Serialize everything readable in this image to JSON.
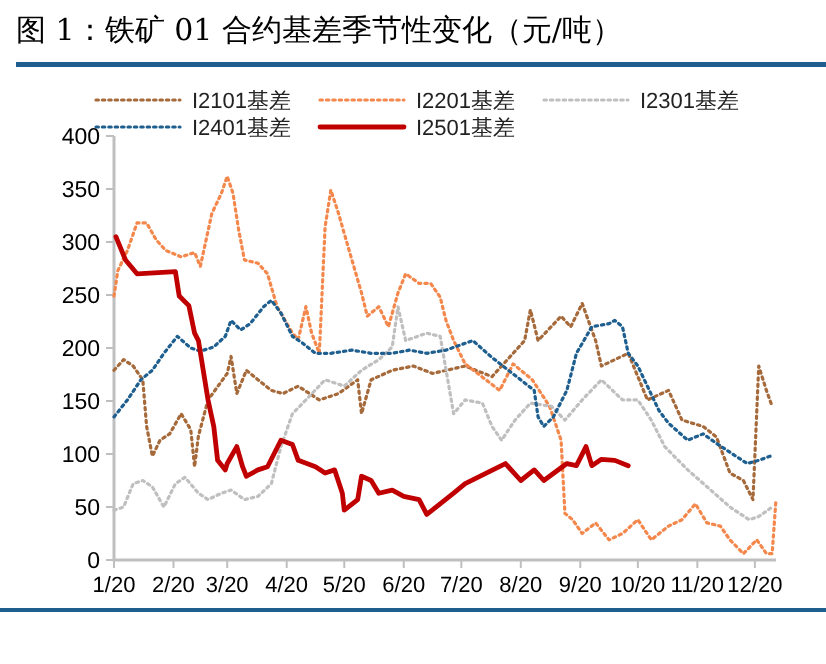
{
  "chart_data": {
    "type": "line",
    "title": "图 1：铁矿 01 合约基差季节性变化（元/吨）",
    "xlim": [
      "--01-20",
      "--12-31"
    ],
    "xticks": [
      {
        "value": "--01-20",
        "label": "1/20"
      },
      {
        "value": "--02-20",
        "label": "2/20"
      },
      {
        "value": "--03-20",
        "label": "3/20"
      },
      {
        "value": "--04-20",
        "label": "4/20"
      },
      {
        "value": "--05-20",
        "label": "5/20"
      },
      {
        "value": "--06-20",
        "label": "6/20"
      },
      {
        "value": "--07-20",
        "label": "7/20"
      },
      {
        "value": "--08-20",
        "label": "8/20"
      },
      {
        "value": "--09-20",
        "label": "9/20"
      },
      {
        "value": "--10-20",
        "label": "10/20"
      },
      {
        "value": "--11-20",
        "label": "11/20"
      },
      {
        "value": "--12-20",
        "label": "12/20"
      }
    ],
    "ylim": [
      0,
      400
    ],
    "yticks": [
      0,
      50,
      100,
      150,
      200,
      250,
      300,
      350,
      400
    ],
    "grid": false,
    "legend": "top",
    "marker": "none",
    "series": [
      {
        "name": "I2101基差",
        "color": "#a5693a",
        "line_style": "dotted",
        "x": [
          "--01-20",
          "--01-25",
          "--01-30",
          "--02-04",
          "--02-06",
          "--02-09",
          "--02-13",
          "--02-18",
          "--02-24",
          "--03-01",
          "--03-03",
          "--03-05",
          "--03-10",
          "--03-20",
          "--03-22",
          "--03-25",
          "--03-30",
          "--04-05",
          "--04-12",
          "--04-18",
          "--04-26",
          "--05-07",
          "--05-17",
          "--05-27",
          "--05-29",
          "--06-03",
          "--06-14",
          "--06-25",
          "--07-05",
          "--07-22",
          "--08-05",
          "--08-16",
          "--08-22",
          "--08-25",
          "--08-29",
          "--09-10",
          "--09-15",
          "--09-21",
          "--09-28",
          "--10-01",
          "--10-15",
          "--10-25",
          "--11-05",
          "--11-12",
          "--11-23",
          "--11-30",
          "--12-07",
          "--12-14",
          "--12-19",
          "--12-22",
          "--12-26",
          "--12-29"
        ],
        "values": [
          179,
          189,
          183,
          170,
          126,
          98,
          113,
          119,
          138,
          123,
          88,
          117,
          151,
          176,
          192,
          157,
          179,
          170,
          160,
          157,
          164,
          151,
          157,
          170,
          138,
          170,
          179,
          183,
          176,
          183,
          173,
          195,
          207,
          236,
          207,
          230,
          220,
          242,
          207,
          183,
          195,
          151,
          160,
          132,
          126,
          116,
          82,
          75,
          57,
          183,
          160,
          145
        ]
      },
      {
        "name": "I2201基差",
        "color": "#f4874b",
        "line_style": "dotted",
        "x": [
          "--01-20",
          "--01-22",
          "--01-27",
          "--02-01",
          "--02-06",
          "--02-11",
          "--02-16",
          "--02-24",
          "--03-03",
          "--03-06",
          "--03-12",
          "--03-17",
          "--03-20",
          "--03-23",
          "--03-26",
          "--03-29",
          "--04-05",
          "--04-10",
          "--04-15",
          "--04-23",
          "--04-26",
          "--04-30",
          "--05-03",
          "--05-07",
          "--05-10",
          "--05-13",
          "--05-17",
          "--05-20",
          "--05-24",
          "--05-29",
          "--06-01",
          "--06-07",
          "--06-12",
          "--06-17",
          "--06-21",
          "--06-28",
          "--07-04",
          "--07-09",
          "--07-12",
          "--07-16",
          "--07-22",
          "--08-09",
          "--08-16",
          "--08-26",
          "--09-04",
          "--09-10",
          "--09-12",
          "--09-16",
          "--09-21",
          "--09-28",
          "--10-05",
          "--10-12",
          "--10-20",
          "--10-27",
          "--11-05",
          "--11-12",
          "--11-19",
          "--11-25",
          "--12-02",
          "--12-07",
          "--12-14",
          "--12-21",
          "--12-26",
          "--12-29",
          "--12-31"
        ],
        "values": [
          249,
          273,
          292,
          318,
          318,
          302,
          292,
          286,
          290,
          277,
          327,
          346,
          362,
          346,
          311,
          283,
          280,
          270,
          239,
          214,
          208,
          239,
          214,
          195,
          314,
          349,
          327,
          308,
          283,
          252,
          230,
          239,
          220,
          252,
          270,
          261,
          261,
          248,
          226,
          207,
          185,
          160,
          185,
          170,
          145,
          113,
          44,
          38,
          25,
          35,
          19,
          25,
          38,
          19,
          32,
          38,
          53,
          35,
          32,
          19,
          6,
          19,
          6,
          6,
          57
        ]
      },
      {
        "name": "I2301基差",
        "color": "#bfbfbf",
        "line_style": "dotted",
        "x": [
          "--01-20",
          "--01-25",
          "--01-30",
          "--02-04",
          "--02-09",
          "--02-15",
          "--02-21",
          "--02-26",
          "--03-05",
          "--03-10",
          "--03-17",
          "--03-22",
          "--03-29",
          "--04-05",
          "--04-12",
          "--04-17",
          "--04-23",
          "--04-30",
          "--05-10",
          "--05-20",
          "--05-29",
          "--06-07",
          "--06-14",
          "--06-17",
          "--06-21",
          "--07-02",
          "--07-09",
          "--07-16",
          "--07-22",
          "--07-31",
          "--08-05",
          "--08-10",
          "--08-17",
          "--08-25",
          "--09-05",
          "--09-12",
          "--09-21",
          "--10-01",
          "--10-12",
          "--10-20",
          "--10-27",
          "--11-03",
          "--11-15",
          "--11-27",
          "--12-07",
          "--12-17",
          "--12-22",
          "--12-29"
        ],
        "values": [
          47,
          50,
          72,
          75,
          69,
          50,
          72,
          78,
          63,
          57,
          63,
          66,
          57,
          60,
          72,
          107,
          138,
          151,
          170,
          164,
          179,
          189,
          201,
          239,
          207,
          214,
          211,
          138,
          151,
          148,
          126,
          113,
          132,
          148,
          145,
          132,
          151,
          170,
          151,
          151,
          132,
          107,
          85,
          66,
          50,
          38,
          41,
          50
        ]
      },
      {
        "name": "I2401基差",
        "color": "#1f5f8f",
        "line_style": "dotted",
        "x": [
          "--01-20",
          "--01-27",
          "--02-03",
          "--02-09",
          "--02-15",
          "--02-22",
          "--03-01",
          "--03-06",
          "--03-13",
          "--03-19",
          "--03-22",
          "--03-27",
          "--04-01",
          "--04-08",
          "--04-12",
          "--04-17",
          "--04-23",
          "--04-28",
          "--05-05",
          "--05-13",
          "--05-24",
          "--06-03",
          "--06-14",
          "--06-23",
          "--07-02",
          "--07-12",
          "--07-26",
          "--08-05",
          "--08-27",
          "--08-29",
          "--09-01",
          "--09-06",
          "--09-13",
          "--09-18",
          "--09-26",
          "--10-05",
          "--10-08",
          "--10-12",
          "--10-15",
          "--10-20",
          "--10-31",
          "--11-05",
          "--11-15",
          "--11-23",
          "--11-30",
          "--12-10",
          "--12-16",
          "--12-22",
          "--12-28"
        ],
        "values": [
          135,
          151,
          170,
          179,
          195,
          211,
          200,
          197,
          201,
          211,
          226,
          217,
          223,
          239,
          245,
          233,
          211,
          205,
          195,
          195,
          198,
          195,
          195,
          198,
          195,
          198,
          207,
          191,
          160,
          135,
          126,
          135,
          160,
          195,
          220,
          223,
          226,
          220,
          195,
          183,
          141,
          129,
          113,
          119,
          110,
          98,
          91,
          94,
          98
        ]
      },
      {
        "name": "I2501基差",
        "color": "#c00000",
        "line_style": "solid",
        "x": [
          "--01-21",
          "--01-26",
          "--02-01",
          "--02-21",
          "--02-23",
          "--02-28",
          "--03-03",
          "--03-05",
          "--03-10",
          "--03-13",
          "--03-15",
          "--03-19",
          "--03-20",
          "--03-25",
          "--03-28",
          "--03-30",
          "--04-05",
          "--04-10",
          "--04-17",
          "--04-23",
          "--04-26",
          "--05-05",
          "--05-10",
          "--05-15",
          "--05-19",
          "--05-20",
          "--05-27",
          "--05-29",
          "--06-03",
          "--06-07",
          "--06-14",
          "--06-20",
          "--06-28",
          "--07-02",
          "--07-16",
          "--07-22",
          "--08-02",
          "--08-12",
          "--08-20",
          "--08-27",
          "--09-01",
          "--09-13",
          "--09-18",
          "--09-23",
          "--09-26",
          "--10-01",
          "--10-08",
          "--10-15"
        ],
        "values": [
          305,
          283,
          270,
          272,
          249,
          240,
          214,
          207,
          151,
          126,
          94,
          85,
          91,
          107,
          88,
          79,
          85,
          88,
          113,
          109,
          94,
          88,
          82,
          85,
          63,
          47,
          57,
          79,
          75,
          63,
          66,
          60,
          57,
          43,
          63,
          72,
          82,
          91,
          75,
          85,
          75,
          91,
          89,
          107,
          89,
          95,
          94,
          89
        ]
      }
    ]
  }
}
